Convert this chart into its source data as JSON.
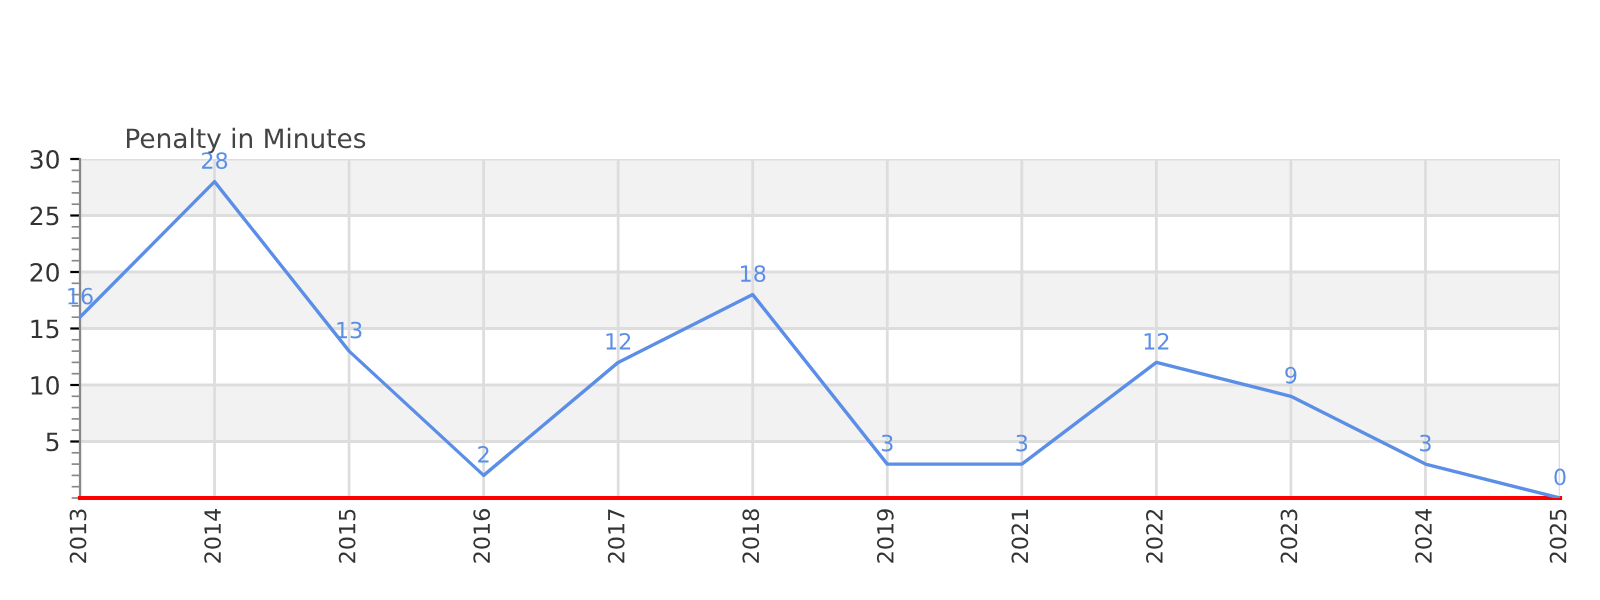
{
  "chart_data": {
    "type": "line",
    "title": "Penalty in Minutes",
    "categories": [
      "2013",
      "2014",
      "2015",
      "2016",
      "2017",
      "2018",
      "2019",
      "2021",
      "2022",
      "2023",
      "2024",
      "2025"
    ],
    "series": [
      {
        "color": "#5b8ee6",
        "values": [
          16,
          28,
          13,
          2,
          12,
          18,
          3,
          3,
          12,
          9,
          3,
          0
        ]
      }
    ],
    "ylim": [
      0,
      30
    ],
    "yticks": [
      5,
      10,
      15,
      20,
      25,
      30
    ],
    "bands": [
      {
        "axis": "y",
        "from": 5,
        "to": 10,
        "color": "#f2f2f2"
      },
      {
        "axis": "y",
        "from": 15,
        "to": 20,
        "color": "#f2f2f2"
      },
      {
        "axis": "y",
        "from": 25,
        "to": 30,
        "color": "#f2f2f2"
      }
    ],
    "grid": true,
    "data_labels": true,
    "marker": "none",
    "line_style": "solid",
    "legend": false
  }
}
